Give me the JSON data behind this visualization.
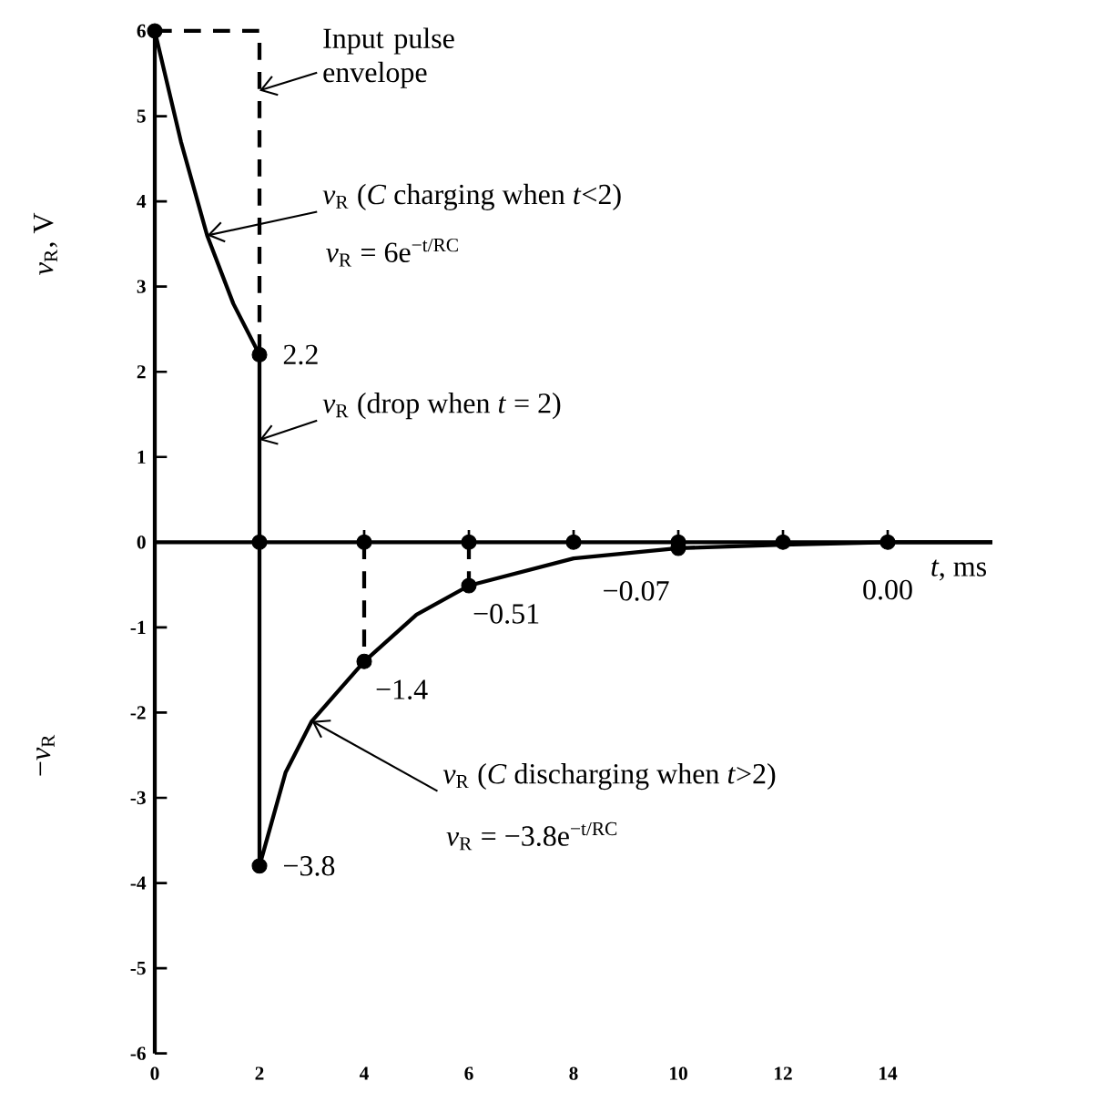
{
  "chart_data": {
    "type": "line",
    "xlabel": "*t*, ms",
    "ylabel": "*v*$_{R}$, V",
    "xlim": [
      0,
      16
    ],
    "ylim": [
      -6,
      6
    ],
    "xticks": [
      0,
      2,
      4,
      6,
      8,
      10,
      12,
      14
    ],
    "yticks": [
      -6,
      -5,
      -4,
      -3,
      -2,
      -1,
      0,
      1,
      2,
      3,
      4,
      5,
      6
    ],
    "series": [
      {
        "color": "#000000",
        "line_style": "dashed",
        "x": [
          0,
          2,
          2
        ],
        "values": [
          6,
          6,
          2.2
        ]
      },
      {
        "color": "#000000",
        "line_style": "solid",
        "x": [
          0,
          0.5,
          1,
          1.5,
          2,
          2,
          2.5,
          3,
          4,
          5,
          6,
          8,
          10,
          12,
          14,
          16
        ],
        "values": [
          6,
          4.7,
          3.6,
          2.8,
          2.2,
          -3.8,
          -2.7,
          -2.1,
          -1.4,
          -0.85,
          -0.51,
          -0.19,
          -0.07,
          -0.03,
          0.0,
          0.0
        ]
      },
      {
        "color": "#000000",
        "line_style": "dashed",
        "x": [
          4,
          4
        ],
        "values": [
          0,
          -1.4
        ]
      },
      {
        "color": "#000000",
        "line_style": "dashed",
        "x": [
          6,
          6
        ],
        "values": [
          0,
          -0.51
        ]
      },
      {
        "type": "scatter",
        "color": "#000000",
        "marker": "circle",
        "x": [
          0,
          2,
          2,
          4,
          6,
          10,
          14
        ],
        "values": [
          6,
          2.2,
          -3.8,
          -1.4,
          -0.51,
          -0.07,
          0.0
        ],
        "value_labels": [
          null,
          "2.2",
          "−3.8",
          "−1.4",
          "−0.51",
          "−0.07",
          "0.00"
        ]
      },
      {
        "type": "scatter",
        "color": "#000000",
        "marker": "circle",
        "x": [
          2,
          4,
          6,
          8,
          10,
          12
        ],
        "values": [
          0,
          0,
          0,
          0,
          0,
          0
        ]
      }
    ],
    "annotations": [
      {
        "text": "Input pulse envelope",
        "x": 2,
        "y": 5.3
      },
      {
        "text": "*v*$_{R}$ (*C* charging when *t*<2)",
        "x": 1,
        "y": 3.6
      },
      "*v*$_{R}$ = 6e$^{−t/RC}$",
      {
        "text": "*v*$_{R}$ (drop when *t* = 2)",
        "x": 2,
        "y": 1.2
      },
      {
        "text": "*v*$_{R}$ (*C* discharging when *t*>2)",
        "x": 3,
        "y": -2.1
      },
      "*v*$_{R}$ = −3.8e$^{−t/RC}$",
      "−*v*$_{R}$"
    ]
  }
}
